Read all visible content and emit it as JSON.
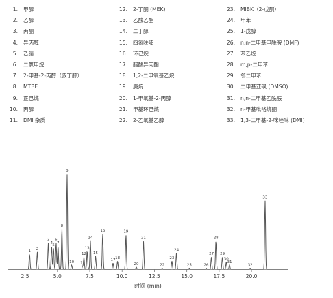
{
  "legend": [
    {
      "num": "1.",
      "name": "甲醇"
    },
    {
      "num": "2.",
      "name": "乙醇"
    },
    {
      "num": "3.",
      "name": "丙酮"
    },
    {
      "num": "4.",
      "name": "异丙醇"
    },
    {
      "num": "5.",
      "name": "乙腈"
    },
    {
      "num": "6.",
      "name": "二氯甲烷"
    },
    {
      "num": "7.",
      "name": "2-甲基-2-丙醇（叔丁醇）"
    },
    {
      "num": "8.",
      "name": "MTBE"
    },
    {
      "num": "9.",
      "name": "正己烷"
    },
    {
      "num": "10.",
      "name": "丙醇"
    },
    {
      "num": "11.",
      "name": "DMI 杂质"
    },
    {
      "num": "12.",
      "name": "2-丁酮 (MEK)"
    },
    {
      "num": "13.",
      "name": "乙酸乙酯"
    },
    {
      "num": "14.",
      "name": "二丁醇"
    },
    {
      "num": "15.",
      "name": "四氢呋喃"
    },
    {
      "num": "16.",
      "name": "环己烷"
    },
    {
      "num": "17.",
      "name": "醋酸异丙酯"
    },
    {
      "num": "18.",
      "name": "1,2-二甲氧基乙烷"
    },
    {
      "num": "19.",
      "name": "庚烷"
    },
    {
      "num": "20.",
      "name": "1-甲氧基-2-丙醇"
    },
    {
      "num": "21.",
      "name": "甲基环己烷"
    },
    {
      "num": "22.",
      "name": "2-乙氧基乙醇"
    },
    {
      "num": "23.",
      "name": "MIBK（2-戊酮）"
    },
    {
      "num": "24.",
      "name": "甲苯"
    },
    {
      "num": "25.",
      "name": "1-戊醇"
    },
    {
      "num": "26.",
      "name": "n,n-二甲基甲酰胺 (DMF)"
    },
    {
      "num": "27.",
      "name": "苯乙烷"
    },
    {
      "num": "28.",
      "name": "m,p-二甲苯"
    },
    {
      "num": "29.",
      "name": "邻二甲苯"
    },
    {
      "num": "30.",
      "name": "二甲基亚砜 (DMSO)"
    },
    {
      "num": "31.",
      "name": "n,n-二甲基乙酰胺"
    },
    {
      "num": "32.",
      "name": "n-甲基吡咯烷酮"
    },
    {
      "num": "33.",
      "name": "1,3-二甲基-2-咪唑啉 (DMI)"
    }
  ],
  "colors": {
    "trace": "#555555",
    "text": "#3a3a3a",
    "axis": "#777777",
    "grid": "#cccccc"
  },
  "chart_data": {
    "type": "line",
    "xlabel": "时间 (min)",
    "ylabel": "",
    "xlim": [
      1.2,
      22.8
    ],
    "ylim": [
      0,
      100
    ],
    "xticks": [
      2.5,
      5.0,
      7.5,
      10.0,
      12.5,
      15.0,
      17.5,
      20.0
    ],
    "xtick_labels": [
      "2.5",
      "5.0",
      "7.5",
      "10.0",
      "12.5",
      "15.0",
      "17.5",
      "20.0"
    ],
    "grid": false,
    "peaks": [
      {
        "label": "1",
        "time": 2.85,
        "height": 15
      },
      {
        "label": "2",
        "time": 3.45,
        "height": 17
      },
      {
        "label": "3",
        "time": 4.3,
        "height": 26
      },
      {
        "label": "4",
        "time": 4.55,
        "height": 23
      },
      {
        "label": "5",
        "time": 4.7,
        "height": 21
      },
      {
        "label": "6",
        "time": 4.9,
        "height": 26
      },
      {
        "label": "7",
        "time": 5.05,
        "height": 23
      },
      {
        "label": "8",
        "time": 5.35,
        "height": 40
      },
      {
        "label": "9",
        "time": 5.75,
        "height": 94
      },
      {
        "label": "10",
        "time": 6.1,
        "height": 4
      },
      {
        "label": "11",
        "time": 6.95,
        "height": 3
      },
      {
        "label": "12",
        "time": 7.05,
        "height": 12
      },
      {
        "label": "13",
        "time": 7.3,
        "height": 18
      },
      {
        "label": "14",
        "time": 7.55,
        "height": 28
      },
      {
        "label": "15",
        "time": 7.95,
        "height": 13
      },
      {
        "label": "16",
        "time": 8.5,
        "height": 35
      },
      {
        "label": "17",
        "time": 9.3,
        "height": 6
      },
      {
        "label": "18",
        "time": 9.65,
        "height": 8
      },
      {
        "label": "19",
        "time": 10.3,
        "height": 34
      },
      {
        "label": "20",
        "time": 11.1,
        "height": 2
      },
      {
        "label": "21",
        "time": 11.65,
        "height": 28
      },
      {
        "label": "22",
        "time": 13.1,
        "height": 1
      },
      {
        "label": "23",
        "time": 13.85,
        "height": 8
      },
      {
        "label": "24",
        "time": 14.2,
        "height": 16
      },
      {
        "label": "25",
        "time": 15.2,
        "height": 1
      },
      {
        "label": "26",
        "time": 16.5,
        "height": 1
      },
      {
        "label": "27",
        "time": 16.9,
        "height": 12
      },
      {
        "label": "28",
        "time": 17.25,
        "height": 28
      },
      {
        "label": "29",
        "time": 17.75,
        "height": 12
      },
      {
        "label": "30",
        "time": 18.05,
        "height": 7
      },
      {
        "label": "31",
        "time": 18.3,
        "height": 4
      },
      {
        "label": "32",
        "time": 19.9,
        "height": 1
      },
      {
        "label": "33",
        "time": 21.05,
        "height": 68
      }
    ]
  }
}
